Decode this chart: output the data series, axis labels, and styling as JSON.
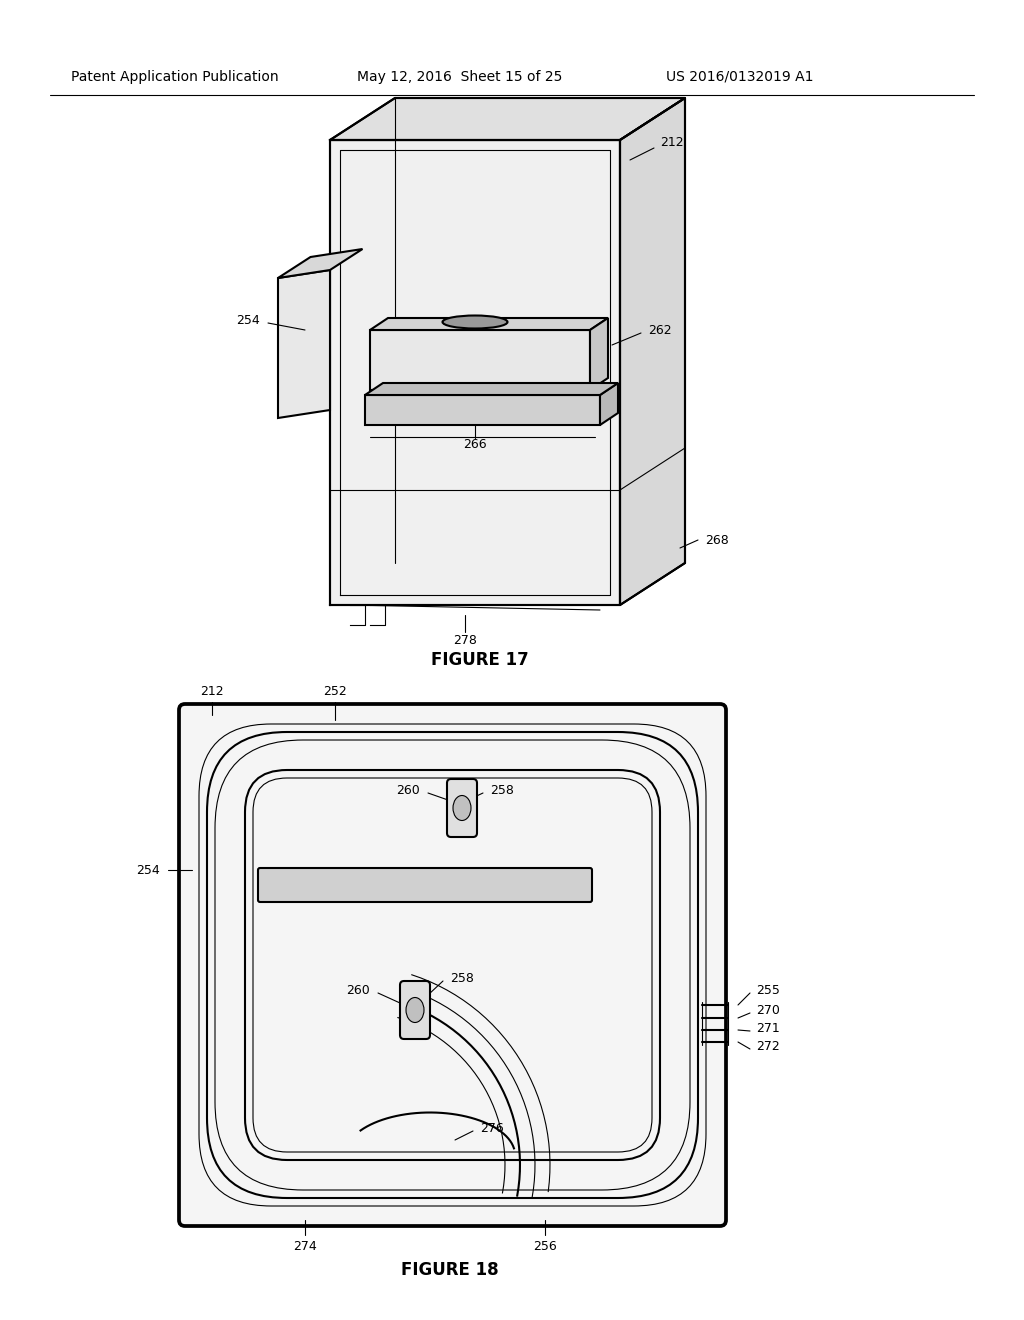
{
  "background_color": "#ffffff",
  "header_left": "Patent Application Publication",
  "header_middle": "May 12, 2016  Sheet 15 of 25",
  "header_right": "US 2016/0132019 A1",
  "figure17_caption": "FIGURE 17",
  "figure18_caption": "FIGURE 18",
  "line_color": "#000000",
  "lw": 1.5,
  "tlw": 0.8,
  "label_fontsize": 9,
  "header_fontsize": 10,
  "caption_fontsize": 12
}
